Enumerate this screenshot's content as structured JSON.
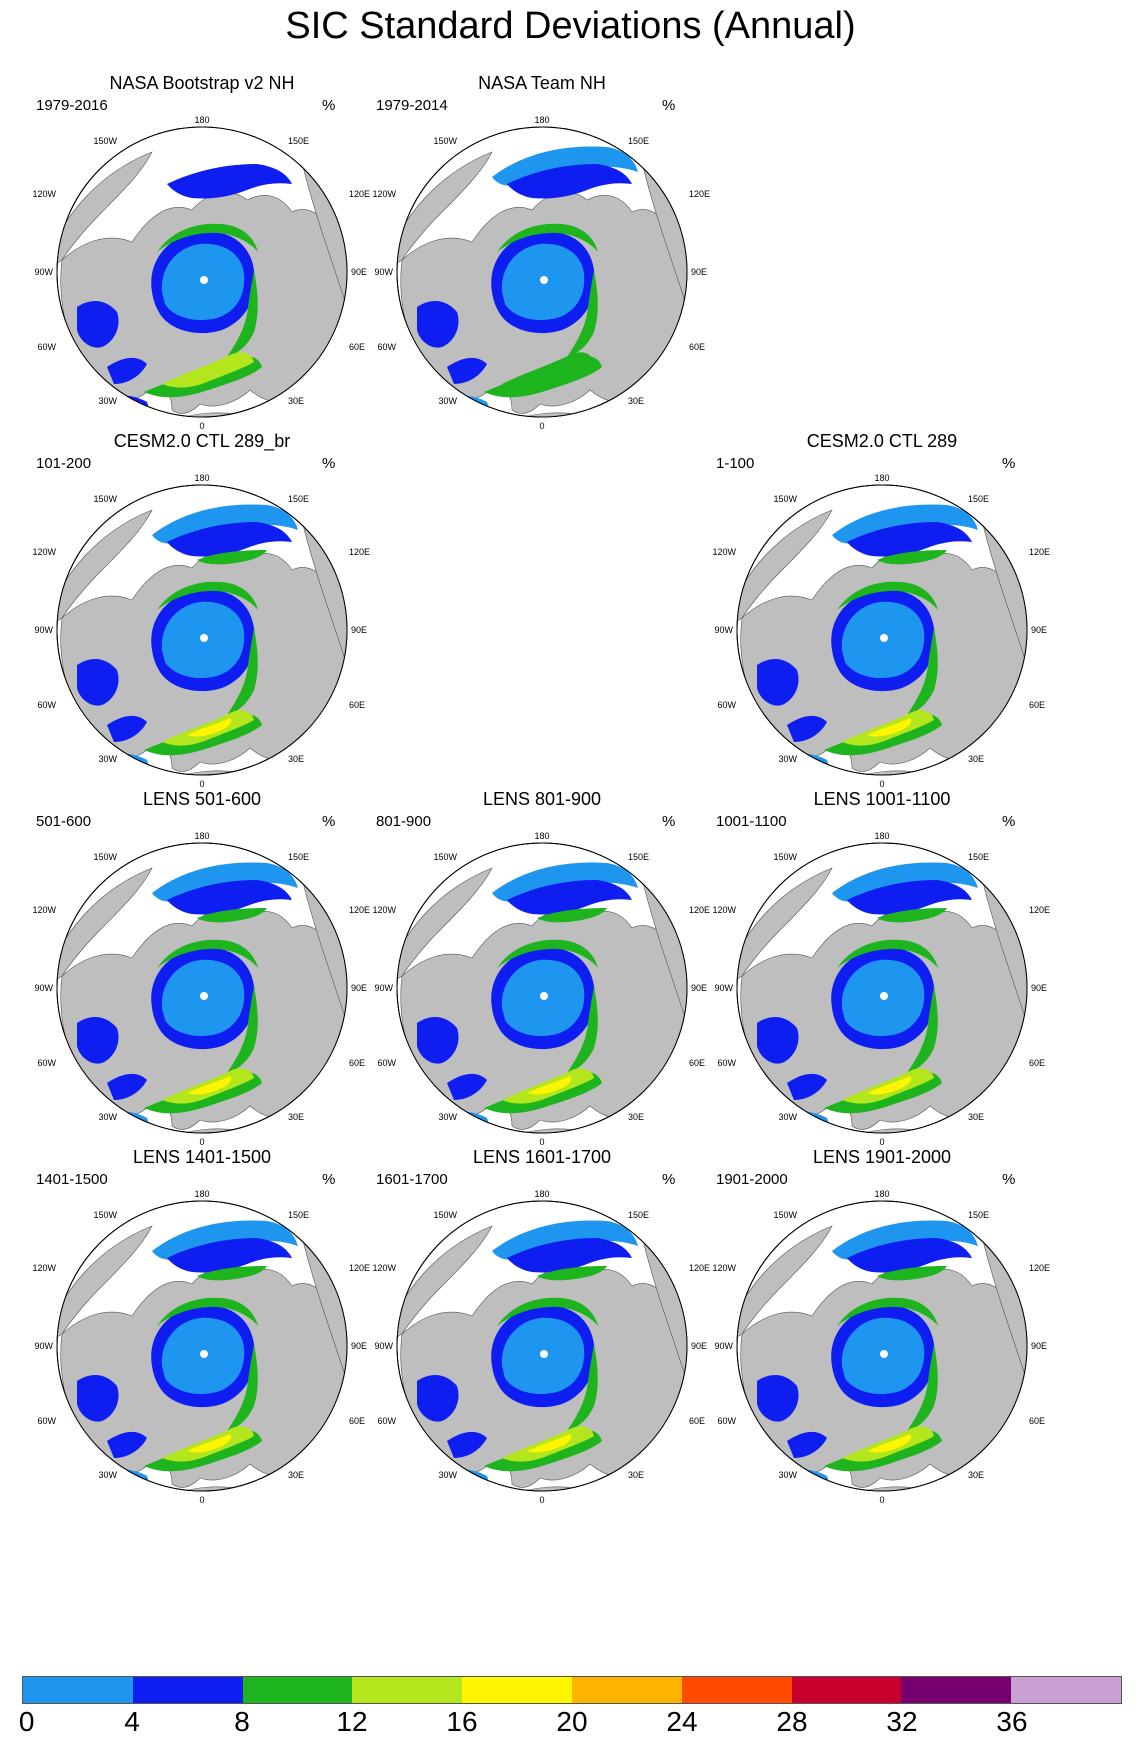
{
  "title": "SIC Standard Deviations (Annual)",
  "panels": [
    {
      "id": "p1",
      "title": "NASA Bootstrap v2 NH",
      "period": "1979-2016",
      "unit": "%",
      "variant": "obs_bootstrap"
    },
    {
      "id": "p2",
      "title": "NASA Team NH",
      "period": "1979-2014",
      "unit": "%",
      "variant": "obs_team"
    },
    {
      "id": "p3",
      "title": "CESM2.0 CTL 289_br",
      "period": "101-200",
      "unit": "%",
      "variant": "cesm"
    },
    {
      "id": "p4",
      "title": "CESM2.0 CTL 289",
      "period": "1-100",
      "unit": "%",
      "variant": "cesm"
    },
    {
      "id": "p5",
      "title": "LENS 501-600",
      "period": "501-600",
      "unit": "%",
      "variant": "lens"
    },
    {
      "id": "p6",
      "title": "LENS 801-900",
      "period": "801-900",
      "unit": "%",
      "variant": "lens"
    },
    {
      "id": "p7",
      "title": "LENS 1001-1100",
      "period": "1001-1100",
      "unit": "%",
      "variant": "lens"
    },
    {
      "id": "p8",
      "title": "LENS 1401-1500",
      "period": "1401-1500",
      "unit": "%",
      "variant": "lens"
    },
    {
      "id": "p9",
      "title": "LENS 1601-1700",
      "period": "1601-1700",
      "unit": "%",
      "variant": "lens"
    },
    {
      "id": "p10",
      "title": "LENS 1901-2000",
      "period": "1901-2000",
      "unit": "%",
      "variant": "lens"
    }
  ],
  "lon_labels": {
    "top": "180",
    "bottom": "0",
    "left": "90W",
    "right": "90E",
    "top_left": "150W",
    "top_right": "150E",
    "upper_left": "120W",
    "upper_right": "120E",
    "lower_left": "60W",
    "lower_right": "60E",
    "bottom_left": "30W",
    "bottom_right": "30E"
  },
  "colorbar": {
    "colors": [
      "#1e96f0",
      "#0f1ef0",
      "#1eb41e",
      "#b4e61e",
      "#fff500",
      "#ffb400",
      "#ff4b00",
      "#c8002d",
      "#78006e",
      "#c8a0d2"
    ],
    "labels": [
      "0",
      "4",
      "8",
      "12",
      "16",
      "20",
      "24",
      "28",
      "32",
      "36"
    ]
  }
}
